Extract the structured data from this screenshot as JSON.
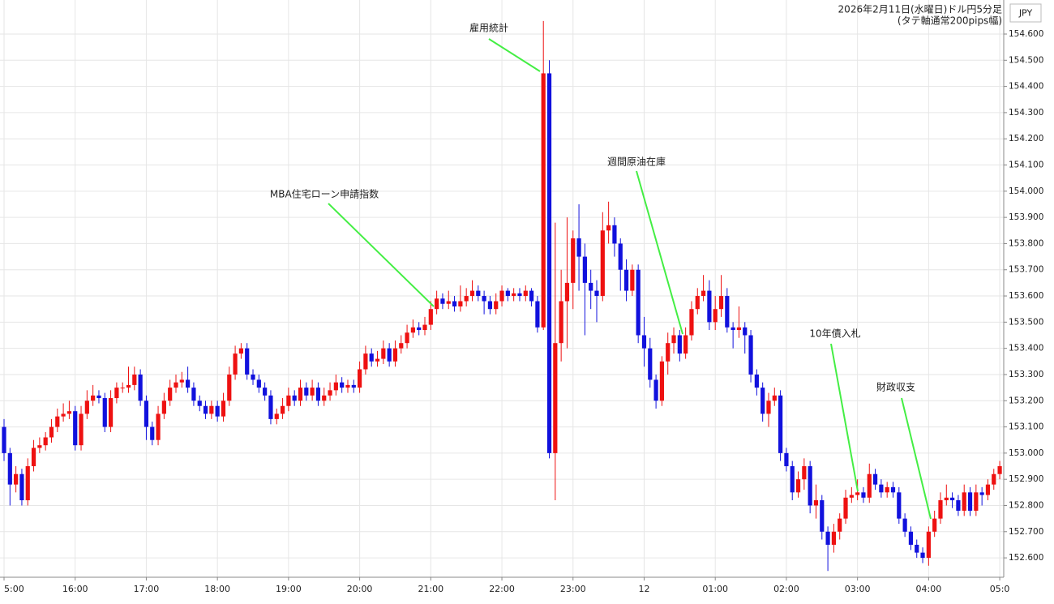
{
  "chart_data": {
    "type": "candlestick",
    "title": "2026年2月11日(水曜日)ドル円5分足",
    "subtitle": "(タテ軸通常200pips幅)",
    "y_axis_label": "JPY",
    "categories": [
      "5:00",
      null,
      null,
      null,
      null,
      null,
      null,
      null,
      null,
      null,
      null,
      null,
      "16:00",
      null,
      null,
      null,
      null,
      null,
      null,
      null,
      null,
      null,
      null,
      null,
      "17:00",
      null,
      null,
      null,
      null,
      null,
      null,
      null,
      null,
      null,
      null,
      null,
      "18:00",
      null,
      null,
      null,
      null,
      null,
      null,
      null,
      null,
      null,
      null,
      null,
      "19:00",
      null,
      null,
      null,
      null,
      null,
      null,
      null,
      null,
      null,
      null,
      null,
      "20:00",
      null,
      null,
      null,
      null,
      null,
      null,
      null,
      null,
      null,
      null,
      null,
      "21:00",
      null,
      null,
      null,
      null,
      null,
      null,
      null,
      null,
      null,
      null,
      null,
      "22:00",
      null,
      null,
      null,
      null,
      null,
      null,
      null,
      null,
      null,
      null,
      null,
      "23:00",
      null,
      null,
      null,
      null,
      null,
      null,
      null,
      null,
      null,
      null,
      null,
      "12",
      null,
      null,
      null,
      null,
      null,
      null,
      null,
      null,
      null,
      null,
      null,
      "01:00",
      null,
      null,
      null,
      null,
      null,
      null,
      null,
      null,
      null,
      null,
      null,
      "02:00",
      null,
      null,
      null,
      null,
      null,
      null,
      null,
      null,
      null,
      null,
      null,
      "03:00",
      null,
      null,
      null,
      null,
      null,
      null,
      null,
      null,
      null,
      null,
      null,
      "04:00",
      null,
      null,
      null,
      null,
      null,
      null,
      null,
      null,
      null,
      null,
      null,
      "05:0",
      null
    ],
    "open": [
      153.1,
      153.0,
      152.88,
      152.92,
      152.82,
      152.95,
      153.02,
      153.03,
      153.06,
      153.1,
      153.14,
      153.15,
      153.16,
      153.03,
      153.15,
      153.2,
      153.22,
      153.21,
      153.1,
      153.21,
      153.25,
      153.25,
      153.26,
      153.3,
      153.2,
      153.1,
      153.05,
      153.15,
      153.2,
      153.25,
      153.27,
      153.28,
      153.25,
      153.2,
      153.18,
      153.15,
      153.18,
      153.14,
      153.2,
      153.3,
      153.38,
      153.4,
      153.3,
      153.28,
      153.25,
      153.22,
      153.13,
      153.15,
      153.18,
      153.22,
      153.2,
      153.25,
      153.22,
      153.25,
      153.2,
      153.22,
      153.24,
      153.27,
      153.25,
      153.26,
      153.25,
      153.32,
      153.38,
      153.35,
      153.36,
      153.4,
      153.35,
      153.4,
      153.42,
      153.46,
      153.48,
      153.47,
      153.49,
      153.55,
      153.59,
      153.57,
      153.58,
      153.56,
      153.58,
      153.6,
      153.62,
      153.6,
      153.58,
      153.55,
      153.58,
      153.62,
      153.6,
      153.61,
      153.6,
      153.62,
      153.58,
      153.48,
      154.45,
      153.0,
      153.42,
      153.58,
      153.65,
      153.82,
      153.75,
      153.65,
      153.62,
      153.6,
      153.85,
      153.87,
      153.8,
      153.7,
      153.62,
      153.7,
      153.45,
      153.4,
      153.28,
      153.2,
      153.35,
      153.42,
      153.45,
      153.38,
      153.45,
      153.55,
      153.6,
      153.62,
      153.5,
      153.55,
      153.6,
      153.48,
      153.47,
      153.48,
      153.45,
      153.3,
      153.25,
      153.15,
      153.2,
      153.22,
      153.0,
      152.95,
      152.85,
      152.9,
      152.95,
      152.8,
      152.82,
      152.7,
      152.65,
      152.7,
      152.75,
      152.83,
      152.84,
      152.85,
      152.83,
      152.92,
      152.88,
      152.85,
      152.87,
      152.85,
      152.75,
      152.7,
      152.65,
      152.62,
      152.6,
      152.7,
      152.75,
      152.82,
      152.83,
      152.82,
      152.78,
      152.85,
      152.78,
      152.85,
      152.84,
      152.88,
      152.92,
      152.95
    ],
    "high": [
      153.13,
      153.02,
      152.95,
      152.94,
      152.98,
      153.05,
      153.06,
      153.08,
      153.13,
      153.17,
      153.19,
      153.2,
      153.18,
      153.18,
      153.24,
      153.26,
      153.24,
      153.23,
      153.24,
      153.27,
      153.27,
      153.33,
      153.33,
      153.32,
      153.22,
      153.12,
      153.18,
      153.23,
      153.28,
      153.3,
      153.31,
      153.33,
      153.27,
      153.22,
      153.2,
      153.2,
      153.2,
      153.23,
      153.33,
      153.41,
      153.42,
      153.42,
      153.32,
      153.3,
      153.27,
      153.24,
      153.17,
      153.21,
      153.25,
      153.24,
      153.28,
      153.27,
      153.28,
      153.27,
      153.25,
      153.27,
      153.3,
      153.29,
      153.28,
      153.28,
      153.35,
      153.41,
      153.4,
      153.39,
      153.43,
      153.42,
      153.43,
      153.45,
      153.49,
      153.51,
      153.5,
      153.52,
      153.58,
      153.62,
      153.61,
      153.62,
      153.6,
      153.64,
      153.63,
      153.66,
      153.64,
      153.62,
      153.6,
      153.61,
      153.64,
      153.63,
      153.63,
      153.63,
      153.64,
      153.63,
      153.6,
      154.65,
      154.5,
      153.88,
      153.7,
      153.9,
      153.85,
      153.95,
      153.8,
      153.7,
      153.66,
      153.92,
      153.96,
      153.9,
      153.82,
      153.74,
      153.72,
      153.72,
      153.52,
      153.44,
      153.3,
      153.37,
      153.46,
      153.48,
      153.47,
      153.48,
      153.58,
      153.63,
      153.68,
      153.66,
      153.6,
      153.68,
      153.63,
      153.5,
      153.56,
      153.5,
      153.47,
      153.32,
      153.27,
      153.23,
      153.25,
      153.24,
      153.02,
      152.97,
      152.93,
      152.98,
      152.97,
      152.88,
      152.84,
      152.72,
      152.73,
      152.77,
      152.86,
      152.87,
      152.9,
      152.87,
      152.96,
      152.94,
      152.9,
      152.89,
      152.89,
      152.87,
      152.77,
      152.72,
      152.67,
      152.64,
      152.72,
      152.78,
      152.85,
      152.88,
      152.85,
      152.84,
      152.88,
      152.87,
      152.88,
      152.87,
      152.9,
      152.94,
      152.97,
      153.03
    ],
    "low": [
      152.97,
      152.8,
      152.85,
      152.8,
      152.8,
      152.93,
      153.0,
      153.01,
      153.04,
      153.08,
      153.12,
      153.13,
      153.01,
      153.01,
      153.13,
      153.18,
      153.19,
      153.08,
      153.08,
      153.19,
      153.23,
      153.23,
      153.24,
      153.18,
      153.05,
      153.03,
      153.03,
      153.13,
      153.18,
      153.23,
      153.25,
      153.23,
      153.18,
      153.16,
      153.13,
      153.13,
      153.12,
      153.12,
      153.18,
      153.28,
      153.36,
      153.28,
      153.26,
      153.23,
      153.2,
      153.11,
      153.11,
      153.13,
      153.16,
      153.18,
      153.18,
      153.2,
      153.2,
      153.18,
      153.18,
      153.2,
      153.22,
      153.23,
      153.23,
      153.23,
      153.23,
      153.3,
      153.33,
      153.33,
      153.34,
      153.33,
      153.33,
      153.38,
      153.4,
      153.44,
      153.45,
      153.45,
      153.47,
      153.53,
      153.55,
      153.55,
      153.54,
      153.54,
      153.56,
      153.58,
      153.58,
      153.53,
      153.53,
      153.53,
      153.56,
      153.58,
      153.58,
      153.58,
      153.58,
      153.56,
      153.46,
      153.47,
      152.98,
      152.82,
      153.35,
      153.4,
      153.55,
      153.62,
      153.45,
      153.55,
      153.5,
      153.58,
      153.8,
      153.75,
      153.62,
      153.58,
      153.6,
      153.42,
      153.33,
      153.25,
      153.17,
      153.18,
      153.3,
      153.38,
      153.35,
      153.36,
      153.43,
      153.53,
      153.58,
      153.47,
      153.47,
      153.52,
      153.46,
      153.4,
      153.44,
      153.38,
      153.27,
      153.22,
      153.12,
      153.1,
      153.18,
      152.97,
      152.93,
      152.82,
      152.83,
      152.86,
      152.77,
      152.75,
      152.67,
      152.55,
      152.62,
      152.67,
      152.73,
      152.81,
      152.82,
      152.81,
      152.81,
      152.86,
      152.83,
      152.83,
      152.83,
      152.73,
      152.68,
      152.63,
      152.6,
      152.58,
      152.57,
      152.68,
      152.73,
      152.8,
      152.79,
      152.76,
      152.76,
      152.76,
      152.76,
      152.8,
      152.82,
      152.86,
      152.9,
      152.93
    ],
    "close": [
      153.0,
      152.88,
      152.92,
      152.82,
      152.95,
      153.02,
      153.03,
      153.06,
      153.1,
      153.14,
      153.15,
      153.16,
      153.03,
      153.15,
      153.2,
      153.22,
      153.21,
      153.1,
      153.21,
      153.25,
      153.25,
      153.26,
      153.3,
      153.2,
      153.1,
      153.05,
      153.15,
      153.2,
      153.25,
      153.27,
      153.28,
      153.25,
      153.2,
      153.18,
      153.15,
      153.18,
      153.14,
      153.2,
      153.3,
      153.38,
      153.4,
      153.3,
      153.28,
      153.25,
      153.22,
      153.13,
      153.15,
      153.18,
      153.22,
      153.2,
      153.25,
      153.22,
      153.25,
      153.2,
      153.22,
      153.24,
      153.27,
      153.25,
      153.26,
      153.25,
      153.32,
      153.38,
      153.35,
      153.36,
      153.4,
      153.35,
      153.4,
      153.42,
      153.46,
      153.48,
      153.47,
      153.49,
      153.55,
      153.59,
      153.57,
      153.58,
      153.56,
      153.58,
      153.6,
      153.62,
      153.6,
      153.58,
      153.55,
      153.58,
      153.62,
      153.6,
      153.61,
      153.6,
      153.62,
      153.58,
      153.48,
      154.45,
      153.0,
      153.42,
      153.58,
      153.65,
      153.82,
      153.75,
      153.65,
      153.62,
      153.6,
      153.85,
      153.87,
      153.8,
      153.7,
      153.62,
      153.7,
      153.45,
      153.4,
      153.28,
      153.2,
      153.35,
      153.42,
      153.45,
      153.38,
      153.45,
      153.55,
      153.6,
      153.62,
      153.5,
      153.55,
      153.6,
      153.48,
      153.47,
      153.48,
      153.45,
      153.3,
      153.25,
      153.15,
      153.2,
      153.22,
      153.0,
      152.95,
      152.85,
      152.9,
      152.95,
      152.8,
      152.82,
      152.7,
      152.65,
      152.7,
      152.75,
      152.83,
      152.84,
      152.85,
      152.83,
      152.92,
      152.88,
      152.85,
      152.87,
      152.85,
      152.75,
      152.7,
      152.65,
      152.62,
      152.6,
      152.7,
      152.75,
      152.82,
      152.83,
      152.82,
      152.78,
      152.85,
      152.78,
      152.85,
      152.84,
      152.88,
      152.92,
      152.95,
      153.02
    ],
    "ylim": [
      152.526,
      154.73
    ],
    "yticks": [
      {
        "value": 152.6,
        "label": "152.600"
      },
      {
        "value": 152.7,
        "label": "152.700"
      },
      {
        "value": 152.8,
        "label": "152.800"
      },
      {
        "value": 152.9,
        "label": "152.900"
      },
      {
        "value": 153.0,
        "label": "153.000"
      },
      {
        "value": 153.1,
        "label": "153.100"
      },
      {
        "value": 153.2,
        "label": "153.200"
      },
      {
        "value": 153.3,
        "label": "153.300"
      },
      {
        "value": 153.4,
        "label": "153.400"
      },
      {
        "value": 153.5,
        "label": "153.500"
      },
      {
        "value": 153.6,
        "label": "153.600"
      },
      {
        "value": 153.7,
        "label": "153.700"
      },
      {
        "value": 153.8,
        "label": "153.800"
      },
      {
        "value": 153.9,
        "label": "153.900"
      },
      {
        "value": 154.0,
        "label": "154.000"
      },
      {
        "value": 154.1,
        "label": "154.100"
      },
      {
        "value": 154.2,
        "label": "154.200"
      },
      {
        "value": 154.3,
        "label": "154.300"
      },
      {
        "value": 154.4,
        "label": "154.400"
      },
      {
        "value": 154.5,
        "label": "154.500"
      },
      {
        "value": 154.6,
        "label": "154.600"
      }
    ],
    "grid": true,
    "up_color": "#ee1111",
    "down_color": "#1111dd",
    "annotation_color": "#44ee44",
    "annotations": [
      {
        "text": "雇用統計"
      },
      {
        "text": "MBA住宅ローン申請指数"
      },
      {
        "text": "週間原油在庫"
      },
      {
        "text": "10年債入札"
      },
      {
        "text": "財政収支"
      }
    ]
  }
}
